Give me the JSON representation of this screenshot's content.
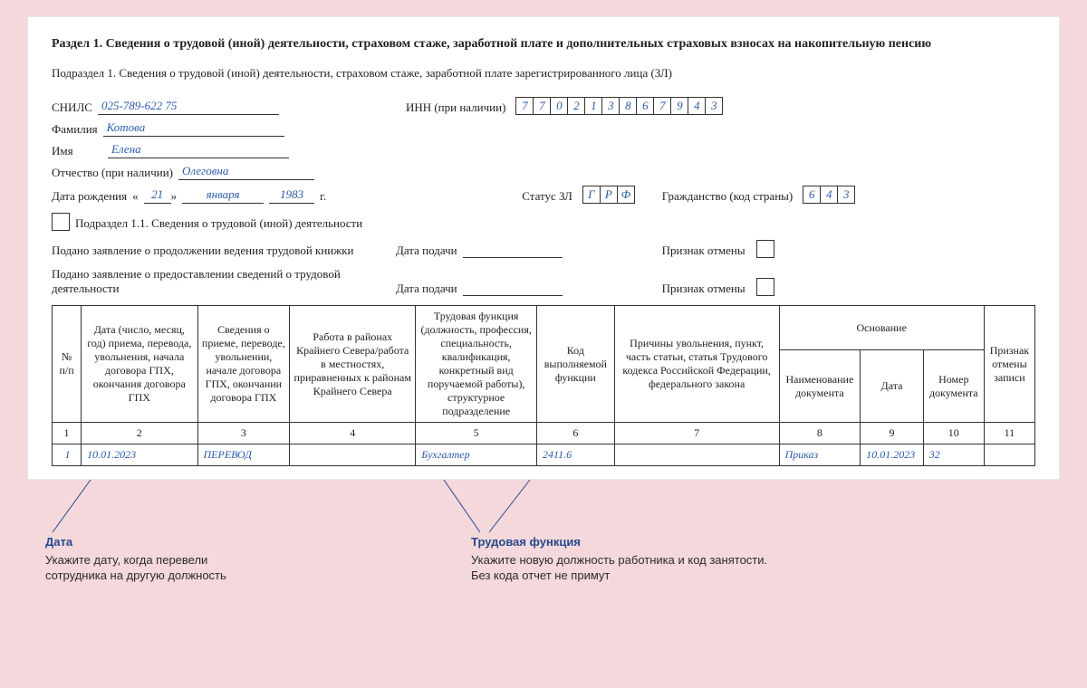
{
  "heading": "Раздел 1. Сведения о трудовой (иной) деятельности, страховом стаже, заработной плате и дополнительных страховых взносах на накопительную пенсию",
  "subheading": "Подраздел 1. Сведения о трудовой (иной) деятельности, страховом стаже, заработной плате зарегистрированного лица (ЗЛ)",
  "labels": {
    "snils": "СНИЛС",
    "inn": "ИНН (при наличии)",
    "surname": "Фамилия",
    "name": "Имя",
    "patronymic": "Отчество (при наличии)",
    "dob": "Дата рождения",
    "dob_open": "«",
    "dob_close": "»",
    "dob_year_suffix": "г.",
    "status": "Статус ЗЛ",
    "citizenship": "Гражданство (код страны)",
    "sub11": "Подраздел 1.1. Сведения о трудовой (иной) деятельности",
    "stmt1": "Подано заявление о продолжении ведения трудовой книжки",
    "stmt2": "Подано заявление о предоставлении сведений о трудовой деятельности",
    "date_submit": "Дата подачи",
    "cancel_flag": "Признак отмены"
  },
  "person": {
    "snils": "025-789-622 75",
    "inn": [
      "7",
      "7",
      "0",
      "2",
      "1",
      "3",
      "8",
      "6",
      "7",
      "9",
      "4",
      "3"
    ],
    "surname": "Котова",
    "name": "Елена",
    "patronymic": "Олеговна",
    "dob_day": "21",
    "dob_month": "января",
    "dob_year": "1983",
    "status": [
      "Г",
      "Р",
      "Ф"
    ],
    "citizenship": [
      "6",
      "4",
      "3"
    ]
  },
  "table": {
    "headers": {
      "c1": "№ п/п",
      "c2": "Дата (число, месяц, год) приема, перевода, увольнения, начала договора ГПХ, окончания договора ГПХ",
      "c3": "Сведения о приеме, переводе, увольнении, начале договора ГПХ, окончании договора ГПХ",
      "c4": "Работа в районах Крайнего Севера/работа в местностях, приравненных к районам Крайнего Севера",
      "c5": "Трудовая функция (должность, профессия, специальность, квалификация, конкретный вид поручаемой работы), структурное подразделение",
      "c6": "Код выполняемой функции",
      "c7": "Причины увольнения, пункт, часть статьи, статья Трудового кодекса Российской Федерации, федерального закона",
      "basis": "Основание",
      "c8": "Наименование документа",
      "c9": "Дата",
      "c10": "Номер документа",
      "c11": "Признак отмены записи"
    },
    "numrow": [
      "1",
      "2",
      "3",
      "4",
      "5",
      "6",
      "7",
      "8",
      "9",
      "10",
      "11"
    ],
    "data": {
      "c1": "1",
      "c2": "10.01.2023",
      "c3": "ПЕРЕВОД",
      "c4": "",
      "c5": "Бухгалтер",
      "c6": "2411.6",
      "c7": "",
      "c8": "Приказ",
      "c9": "10.01.2023",
      "c10": "32",
      "c11": ""
    }
  },
  "callout1": {
    "title": "Дата",
    "text1": "Укажите дату, когда перевели",
    "text2": "сотрудника на другую должность"
  },
  "callout2": {
    "title": "Трудовая функция",
    "text1": "Укажите новую должность работника и код занятости.",
    "text2": "Без кода отчет не примут"
  }
}
